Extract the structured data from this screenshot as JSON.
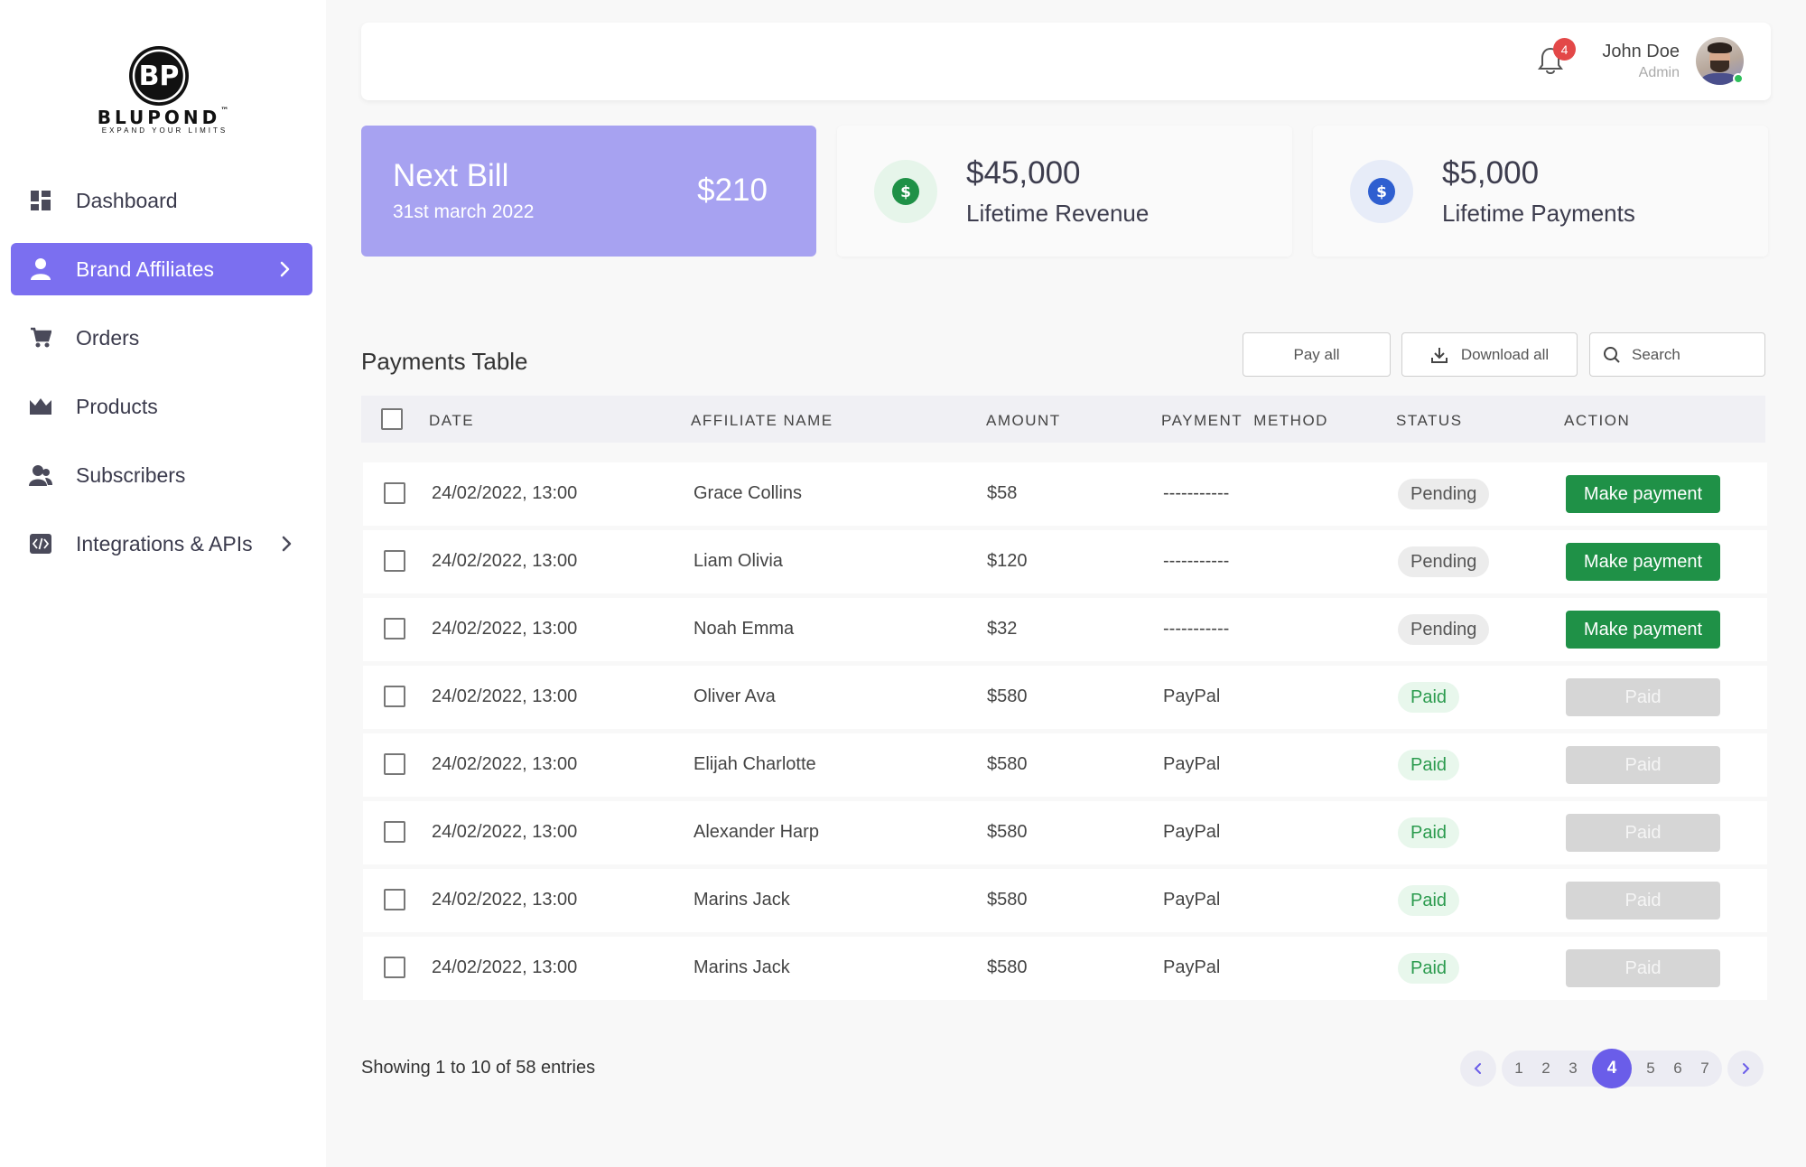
{
  "brand": {
    "name": "BLUPOND",
    "tm": "™",
    "tagline": "EXPAND YOUR LIMITS",
    "monogram": "BP"
  },
  "sidebar": {
    "items": [
      {
        "label": "Dashboard",
        "icon": "dashboard-icon"
      },
      {
        "label": "Brand Affiliates",
        "icon": "user-icon",
        "active": true,
        "chevron": true
      },
      {
        "label": "Orders",
        "icon": "cart-icon"
      },
      {
        "label": "Products",
        "icon": "crown-icon"
      },
      {
        "label": "Subscribers",
        "icon": "users-icon"
      },
      {
        "label": "Integrations & APIs",
        "icon": "code-icon",
        "chevron": true
      }
    ]
  },
  "header": {
    "notifications": "4",
    "user_name": "John Doe",
    "user_role": "Admin"
  },
  "cards": {
    "bill": {
      "title": "Next Bill",
      "date": "31st march 2022",
      "amount": "$210"
    },
    "revenue": {
      "value": "$45,000",
      "label": "Lifetime Revenue"
    },
    "payments": {
      "value": "$5,000",
      "label": "Lifetime Payments"
    }
  },
  "table": {
    "title": "Payments Table",
    "pay_all": "Pay all",
    "download_all": "Download all",
    "search_placeholder": "Search",
    "columns": [
      "DATE",
      "AFFILIATE NAME",
      "AMOUNT",
      "PAYMENT  METHOD",
      "STATUS",
      "ACTION"
    ],
    "rows": [
      {
        "date": "24/02/2022, 13:00",
        "name": "Grace Collins",
        "amount": "$58",
        "method": "-----------",
        "status": "Pending",
        "action": "Make payment"
      },
      {
        "date": "24/02/2022, 13:00",
        "name": "Liam Olivia",
        "amount": "$120",
        "method": "-----------",
        "status": "Pending",
        "action": "Make payment"
      },
      {
        "date": "24/02/2022, 13:00",
        "name": "Noah Emma",
        "amount": "$32",
        "method": "-----------",
        "status": "Pending",
        "action": "Make payment"
      },
      {
        "date": "24/02/2022, 13:00",
        "name": "Oliver Ava",
        "amount": "$580",
        "method": "PayPal",
        "status": "Paid",
        "action": "Paid"
      },
      {
        "date": "24/02/2022, 13:00",
        "name": "Elijah Charlotte",
        "amount": "$580",
        "method": "PayPal",
        "status": "Paid",
        "action": "Paid"
      },
      {
        "date": "24/02/2022, 13:00",
        "name": "Alexander Harp",
        "amount": "$580",
        "method": "PayPal",
        "status": "Paid",
        "action": "Paid"
      },
      {
        "date": "24/02/2022, 13:00",
        "name": "Marins Jack",
        "amount": "$580",
        "method": "PayPal",
        "status": "Paid",
        "action": "Paid"
      },
      {
        "date": "24/02/2022, 13:00",
        "name": "Marins Jack",
        "amount": "$580",
        "method": "PayPal",
        "status": "Paid",
        "action": "Paid"
      }
    ]
  },
  "footer": {
    "entries": "Showing 1 to 10 of 58 entries",
    "pages_before": [
      "1",
      "2",
      "3"
    ],
    "current_page": "4",
    "pages_after": [
      "5",
      "6",
      "7"
    ]
  },
  "colors": {
    "accent": "#7b6ff0",
    "bill_card": "#a7a2f1",
    "success": "#1f9147",
    "badge_red": "#e34848"
  }
}
